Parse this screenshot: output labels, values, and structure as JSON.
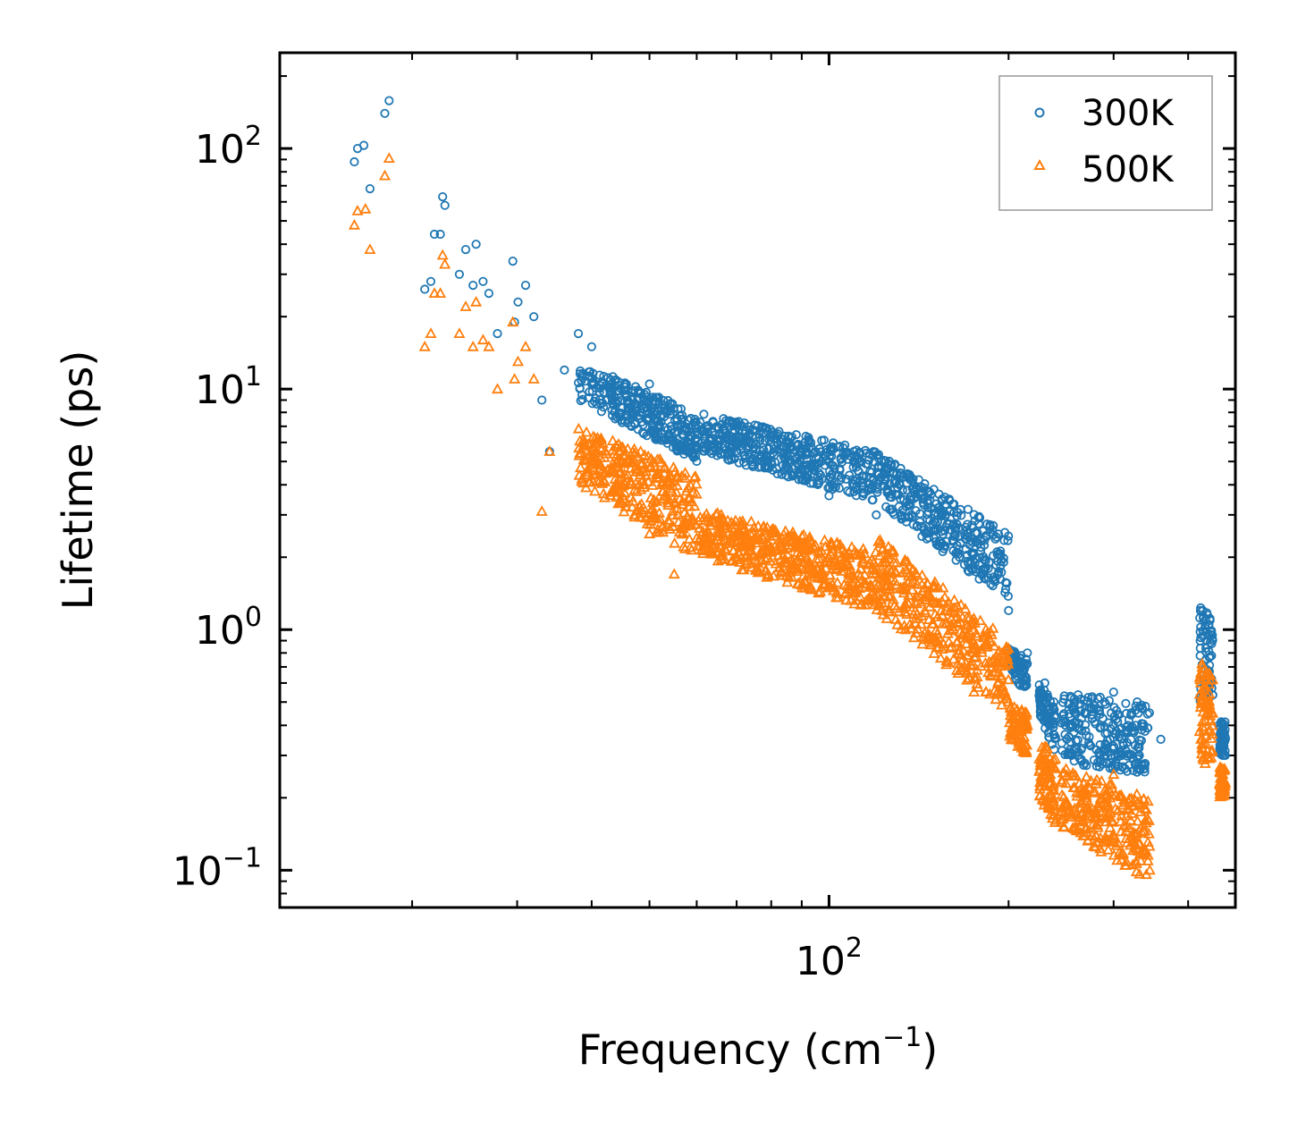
{
  "chart_data": {
    "type": "scatter",
    "title": "",
    "xlabel": "Frequency (cm",
    "xlabel_superscript": "−1",
    "xlabel_suffix": ")",
    "ylabel": "Lifetime (ps)",
    "xscale": "log",
    "yscale": "log",
    "xlim": [
      12,
      480
    ],
    "ylim": [
      0.07,
      250
    ],
    "x_tick_labels": [
      {
        "value": 100,
        "base": "10",
        "exp": "2"
      }
    ],
    "y_tick_labels": [
      {
        "value": 0.1,
        "base": "10",
        "exp": "−1"
      },
      {
        "value": 1,
        "base": "10",
        "exp": "0"
      },
      {
        "value": 10,
        "base": "10",
        "exp": "1"
      },
      {
        "value": 100,
        "base": "10",
        "exp": "2"
      }
    ],
    "legend_position": "top-right",
    "series": [
      {
        "name": "300K",
        "marker": "circle",
        "color": "#1f77b4",
        "sample_points": [
          [
            16,
            88
          ],
          [
            16.2,
            100
          ],
          [
            16.6,
            103
          ],
          [
            17,
            68
          ],
          [
            18,
            140
          ],
          [
            18.3,
            158
          ],
          [
            21,
            26
          ],
          [
            21.5,
            28
          ],
          [
            21.8,
            44
          ],
          [
            22.3,
            44
          ],
          [
            22.5,
            63
          ],
          [
            22.7,
            58
          ],
          [
            24,
            30
          ],
          [
            24.6,
            38
          ],
          [
            25.3,
            27
          ],
          [
            25.6,
            40
          ],
          [
            26.3,
            28
          ],
          [
            26.9,
            25
          ],
          [
            27.8,
            17
          ],
          [
            29.5,
            34
          ],
          [
            29.7,
            19
          ],
          [
            30.1,
            23
          ],
          [
            31,
            27
          ],
          [
            32,
            20
          ],
          [
            33,
            9
          ],
          [
            34,
            5.5
          ],
          [
            36,
            12
          ],
          [
            38,
            17
          ],
          [
            40,
            15
          ],
          [
            45,
            9
          ],
          [
            50,
            10.5
          ],
          [
            58,
            6
          ],
          [
            68,
            5.8
          ],
          [
            80,
            5
          ],
          [
            90,
            4.2
          ],
          [
            100,
            3.6
          ],
          [
            120,
            3.0
          ],
          [
            150,
            2.4
          ],
          [
            180,
            1.7
          ],
          [
            200,
            1.2
          ],
          [
            215,
            0.8
          ],
          [
            230,
            0.6
          ],
          [
            255,
            0.3
          ],
          [
            270,
            0.45
          ],
          [
            300,
            0.55
          ],
          [
            330,
            0.45
          ],
          [
            360,
            0.35
          ],
          [
            420,
            1.2
          ],
          [
            430,
            0.9
          ],
          [
            450,
            0.4
          ]
        ],
        "bands": [
          {
            "x": [
              38,
              60
            ],
            "y": [
              [
                9,
                13
              ],
              [
                5,
                8
              ]
            ]
          },
          {
            "x": [
              60,
              120
            ],
            "y": [
              [
                5.5,
                8
              ],
              [
                3.4,
                5.5
              ]
            ]
          },
          {
            "x": [
              120,
              200
            ],
            "y": [
              [
                3.4,
                5.5
              ],
              [
                1.3,
                2.5
              ]
            ]
          },
          {
            "x": [
              200,
              215
            ],
            "y": [
              [
                0.65,
                0.85
              ],
              [
                0.55,
                0.75
              ]
            ]
          },
          {
            "x": [
              225,
              240
            ],
            "y": [
              [
                0.45,
                0.6
              ],
              [
                0.3,
                0.5
              ]
            ]
          },
          {
            "x": [
              245,
              345
            ],
            "y": [
              [
                0.28,
                0.55
              ],
              [
                0.25,
                0.5
              ]
            ]
          },
          {
            "x": [
              418,
              440
            ],
            "y": [
              [
                0.5,
                1.25
              ],
              [
                0.5,
                1.15
              ]
            ]
          },
          {
            "x": [
              452,
              462
            ],
            "y": [
              [
                0.3,
                0.42
              ],
              [
                0.3,
                0.42
              ]
            ]
          }
        ]
      },
      {
        "name": "500K",
        "marker": "triangle",
        "color": "#ff7f0e",
        "sample_points": [
          [
            16,
            48
          ],
          [
            16.2,
            55
          ],
          [
            16.7,
            56
          ],
          [
            17,
            38
          ],
          [
            18,
            77
          ],
          [
            18.3,
            91
          ],
          [
            21,
            15
          ],
          [
            21.5,
            17
          ],
          [
            21.8,
            25
          ],
          [
            22.3,
            25
          ],
          [
            22.5,
            36
          ],
          [
            22.7,
            33
          ],
          [
            24,
            17
          ],
          [
            24.6,
            22
          ],
          [
            25.3,
            15
          ],
          [
            25.6,
            23
          ],
          [
            26.3,
            16
          ],
          [
            26.9,
            15
          ],
          [
            27.8,
            10
          ],
          [
            29.5,
            19
          ],
          [
            29.7,
            11
          ],
          [
            30.1,
            13
          ],
          [
            31,
            15
          ],
          [
            32,
            11
          ],
          [
            33,
            3.1
          ],
          [
            34,
            5.5
          ],
          [
            40,
            5.5
          ],
          [
            45,
            4.0
          ],
          [
            50,
            2.5
          ],
          [
            55,
            1.7
          ],
          [
            60,
            2.4
          ],
          [
            70,
            2.3
          ],
          [
            80,
            2.2
          ],
          [
            90,
            1.8
          ],
          [
            100,
            1.5
          ],
          [
            120,
            1.3
          ],
          [
            150,
            0.9
          ],
          [
            175,
            0.55
          ],
          [
            200,
            0.5
          ],
          [
            215,
            0.4
          ],
          [
            230,
            0.25
          ],
          [
            255,
            0.17
          ],
          [
            270,
            0.2
          ],
          [
            300,
            0.25
          ],
          [
            330,
            0.12
          ],
          [
            345,
            0.1
          ],
          [
            420,
            0.6
          ],
          [
            430,
            0.45
          ],
          [
            452,
            0.23
          ]
        ],
        "bands": [
          {
            "x": [
              38,
              60
            ],
            "y": [
              [
                4,
                7
              ],
              [
                2,
                4.5
              ]
            ]
          },
          {
            "x": [
              60,
              120
            ],
            "y": [
              [
                2,
                3.2
              ],
              [
                1.2,
                2.1
              ]
            ]
          },
          {
            "x": [
              120,
              200
            ],
            "y": [
              [
                1.2,
                2.5
              ],
              [
                0.45,
                0.9
              ]
            ]
          },
          {
            "x": [
              200,
              215
            ],
            "y": [
              [
                0.35,
                0.5
              ],
              [
                0.3,
                0.45
              ]
            ]
          },
          {
            "x": [
              225,
              240
            ],
            "y": [
              [
                0.2,
                0.35
              ],
              [
                0.15,
                0.3
              ]
            ]
          },
          {
            "x": [
              245,
              345
            ],
            "y": [
              [
                0.15,
                0.27
              ],
              [
                0.09,
                0.2
              ]
            ]
          },
          {
            "x": [
              418,
              440
            ],
            "y": [
              [
                0.3,
                0.75
              ],
              [
                0.25,
                0.65
              ]
            ]
          },
          {
            "x": [
              452,
              462
            ],
            "y": [
              [
                0.2,
                0.27
              ],
              [
                0.2,
                0.27
              ]
            ]
          }
        ]
      }
    ]
  }
}
